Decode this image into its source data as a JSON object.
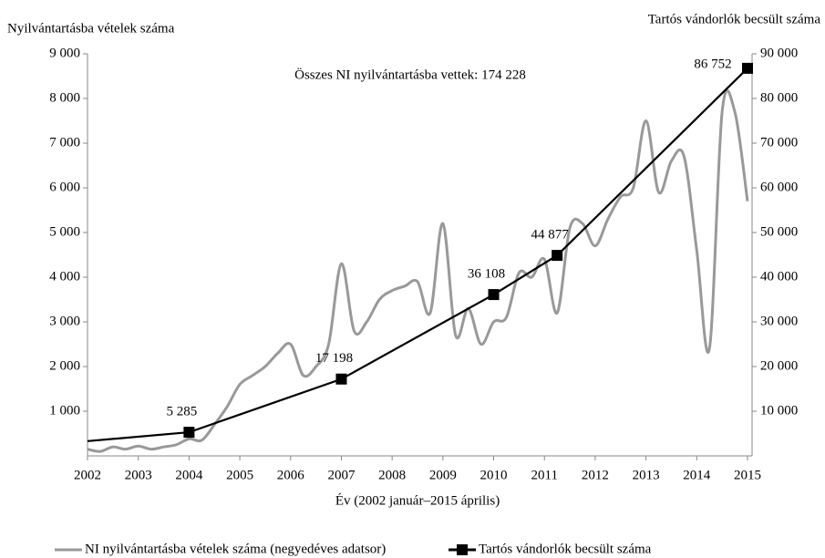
{
  "chart_data": {
    "type": "line",
    "y_axis_label": "Nyilvántartásba vételek száma",
    "y2_axis_label": "Tartós vándorlók becsült száma",
    "x_axis_label": "Év (2002 január–2015 április)",
    "annotation": "Összes NI nyilvántartásba vettek: 174 228",
    "xlim": [
      2002,
      2015
    ],
    "xticks": [
      2002,
      2003,
      2004,
      2005,
      2006,
      2007,
      2008,
      2009,
      2010,
      2011,
      2012,
      2013,
      2014,
      2015
    ],
    "ylim": [
      0,
      9000
    ],
    "yticks": [
      {
        "value": 1000,
        "label": "1 000"
      },
      {
        "value": 2000,
        "label": "2 000"
      },
      {
        "value": 3000,
        "label": "3 000"
      },
      {
        "value": 4000,
        "label": "4 000"
      },
      {
        "value": 5000,
        "label": "5 000"
      },
      {
        "value": 6000,
        "label": "6 000"
      },
      {
        "value": 7000,
        "label": "7 000"
      },
      {
        "value": 8000,
        "label": "8 000"
      },
      {
        "value": 9000,
        "label": "9 000"
      }
    ],
    "y2lim": [
      0,
      90000
    ],
    "y2ticks": [
      {
        "value": 10000,
        "label": "10 000"
      },
      {
        "value": 20000,
        "label": "20 000"
      },
      {
        "value": 30000,
        "label": "30 000"
      },
      {
        "value": 40000,
        "label": "40 000"
      },
      {
        "value": 50000,
        "label": "50 000"
      },
      {
        "value": 60000,
        "label": "60 000"
      },
      {
        "value": 70000,
        "label": "70 000"
      },
      {
        "value": 80000,
        "label": "80 000"
      },
      {
        "value": 90000,
        "label": "90 000"
      }
    ],
    "series": [
      {
        "name": "NI nyilvántartásba vételek száma (negyedéves adatsor)",
        "color": "#999999",
        "axis": "y",
        "x": [
          2002,
          2002.25,
          2002.5,
          2002.75,
          2003,
          2003.25,
          2003.5,
          2003.75,
          2004,
          2004.25,
          2004.5,
          2004.75,
          2005,
          2005.25,
          2005.5,
          2005.75,
          2006,
          2006.25,
          2006.5,
          2006.75,
          2007,
          2007.25,
          2007.5,
          2007.75,
          2008,
          2008.25,
          2008.5,
          2008.75,
          2009,
          2009.25,
          2009.5,
          2009.75,
          2010,
          2010.25,
          2010.5,
          2010.75,
          2011,
          2011.25,
          2011.5,
          2011.75,
          2012,
          2012.25,
          2012.5,
          2012.75,
          2013,
          2013.25,
          2013.5,
          2013.75,
          2014,
          2014.25,
          2014.5,
          2014.75,
          2015
        ],
        "values": [
          150,
          100,
          200,
          150,
          220,
          150,
          200,
          250,
          380,
          350,
          700,
          1100,
          1600,
          1800,
          2000,
          2300,
          2500,
          1800,
          2000,
          2500,
          4300,
          2800,
          3000,
          3500,
          3700,
          3800,
          3900,
          3200,
          5200,
          2700,
          3300,
          2500,
          3000,
          3100,
          4100,
          4000,
          4400,
          3200,
          5100,
          5200,
          4700,
          5300,
          5800,
          6000,
          7500,
          5900,
          6600,
          6700,
          4600,
          2400,
          7700,
          7700,
          5700
        ]
      },
      {
        "name": "Tartós vándorlók becsült száma",
        "color": "#000000",
        "axis": "y2",
        "x": [
          2002,
          2004,
          2007,
          2010,
          2011.25,
          2015
        ],
        "values": [
          3300,
          5285,
          17198,
          36108,
          44877,
          86752
        ],
        "value_labels": [
          null,
          "5 285",
          "17 198",
          "36 108",
          "44 877",
          "86 752"
        ]
      }
    ]
  }
}
